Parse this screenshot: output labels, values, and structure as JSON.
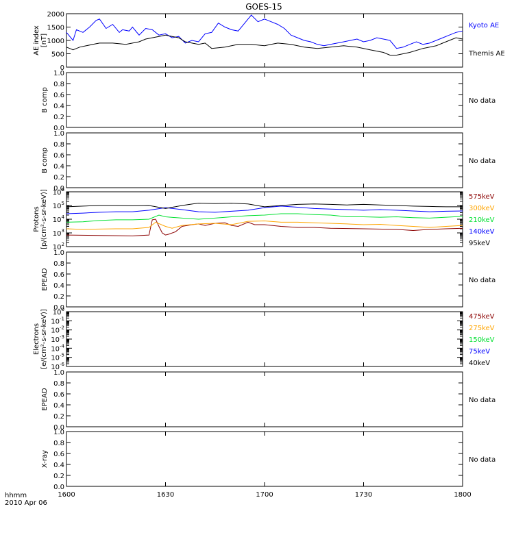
{
  "title": "GOES-15",
  "x_axis": {
    "unit_label": "hhmm",
    "date_label": "2010 Apr 06",
    "ticks": [
      "1600",
      "1630",
      "1700",
      "1730",
      "1800"
    ],
    "range_minutes": [
      0,
      120
    ]
  },
  "no_data_text": "No data",
  "chart_data": [
    {
      "id": "ae",
      "type": "line",
      "ylabel": [
        "AE index",
        "[nT]"
      ],
      "ylim": [
        0,
        2000
      ],
      "yticks": [
        "0",
        "500",
        "1000",
        "1500",
        "2000"
      ],
      "x_unit": "minutes after 1600 UT",
      "series": [
        {
          "name": "Kyoto AE",
          "color": "#0000ff",
          "x": [
            0,
            2,
            3,
            5,
            7,
            9,
            10,
            12,
            14,
            16,
            17,
            19,
            20,
            22,
            24,
            26,
            28,
            30,
            32,
            34,
            36,
            38,
            40,
            42,
            44,
            46,
            48,
            50,
            52,
            54,
            56,
            58,
            60,
            62,
            64,
            66,
            68,
            70,
            72,
            74,
            76,
            78,
            80,
            82,
            84,
            86,
            88,
            90,
            92,
            94,
            96,
            98,
            100,
            102,
            104,
            106,
            108,
            110,
            112,
            114,
            116,
            118,
            120
          ],
          "values": [
            1300,
            1000,
            1400,
            1300,
            1500,
            1750,
            1800,
            1450,
            1600,
            1300,
            1400,
            1350,
            1500,
            1200,
            1450,
            1400,
            1200,
            1250,
            1100,
            1150,
            900,
            1000,
            950,
            1250,
            1300,
            1650,
            1500,
            1400,
            1350,
            1650,
            1950,
            1700,
            1800,
            1700,
            1600,
            1450,
            1200,
            1100,
            1000,
            950,
            850,
            800,
            850,
            900,
            950,
            1000,
            1050,
            950,
            1000,
            1100,
            1050,
            1000,
            700,
            750,
            850,
            950,
            850,
            900,
            1000,
            1100,
            1200,
            1300,
            1350
          ]
        },
        {
          "name": "Themis AE",
          "color": "#000000",
          "x": [
            0,
            2,
            4,
            6,
            8,
            10,
            14,
            18,
            22,
            24,
            26,
            28,
            30,
            32,
            34,
            36,
            40,
            42,
            44,
            48,
            52,
            56,
            60,
            62,
            64,
            68,
            72,
            76,
            80,
            84,
            88,
            92,
            96,
            98,
            100,
            104,
            108,
            112,
            114,
            116,
            118,
            120
          ],
          "values": [
            750,
            650,
            750,
            800,
            850,
            900,
            900,
            850,
            950,
            1050,
            1100,
            1150,
            1200,
            1150,
            1100,
            950,
            850,
            900,
            700,
            750,
            850,
            850,
            800,
            850,
            900,
            850,
            750,
            700,
            750,
            800,
            750,
            650,
            550,
            450,
            450,
            550,
            700,
            800,
            900,
            1000,
            1100,
            1050
          ]
        }
      ]
    },
    {
      "id": "b1",
      "type": "line",
      "ylabel": [
        "B comp"
      ],
      "ylim": [
        0,
        1
      ],
      "yticks": [
        "0.0",
        "0.2",
        "0.4",
        "0.6",
        "0.8",
        "1.0"
      ],
      "no_data": true
    },
    {
      "id": "b2",
      "type": "line",
      "ylabel": [
        "B comp"
      ],
      "ylim": [
        0,
        1
      ],
      "yticks": [
        "0.0",
        "0.2",
        "0.4",
        "0.6",
        "0.8",
        "1.0"
      ],
      "no_data": true
    },
    {
      "id": "protons",
      "type": "line",
      "scale": "log",
      "ylabel": [
        "Protons",
        "[p/(cm²-s-sr-keV)]"
      ],
      "ylim_exp": [
        2,
        6
      ],
      "ytick_exps": [
        2,
        3,
        4,
        5,
        6
      ],
      "x_unit": "minutes after 1600 UT",
      "series": [
        {
          "name": "575keV",
          "color": "#8b0000",
          "x": [
            0,
            10,
            20,
            25,
            26,
            27,
            28,
            29,
            30,
            31,
            33,
            35,
            38,
            40,
            42,
            45,
            48,
            50,
            52,
            55,
            57,
            60,
            65,
            70,
            75,
            80,
            90,
            100,
            105,
            110,
            115,
            120
          ],
          "values": [
            700,
            650,
            600,
            700,
            9000,
            10000,
            3000,
            1000,
            700,
            800,
            1200,
            3000,
            4000,
            4500,
            3500,
            5000,
            5500,
            3500,
            3000,
            6000,
            4000,
            4000,
            3000,
            2500,
            2500,
            2200,
            2000,
            1800,
            1500,
            1800,
            2000,
            2200
          ]
        },
        {
          "name": "300keV",
          "color": "#ffa500",
          "x": [
            0,
            5,
            10,
            15,
            20,
            25,
            27,
            30,
            32,
            35,
            40,
            45,
            50,
            55,
            60,
            65,
            70,
            75,
            80,
            85,
            90,
            95,
            100,
            105,
            110,
            115,
            120
          ],
          "values": [
            2000,
            1800,
            1900,
            2000,
            2000,
            2500,
            6000,
            3000,
            2200,
            3500,
            4500,
            5000,
            4000,
            7000,
            7500,
            6000,
            6000,
            5500,
            5000,
            4500,
            4000,
            4200,
            3500,
            3000,
            2500,
            3000,
            3500
          ]
        },
        {
          "name": "210keV",
          "color": "#00e030",
          "x": [
            0,
            5,
            10,
            15,
            20,
            25,
            28,
            30,
            35,
            40,
            45,
            50,
            55,
            60,
            65,
            70,
            75,
            80,
            85,
            90,
            95,
            100,
            105,
            110,
            115,
            120
          ],
          "values": [
            6000,
            6500,
            8000,
            9000,
            9000,
            10000,
            20000,
            15000,
            12000,
            10000,
            12000,
            15000,
            18000,
            20000,
            25000,
            25000,
            22000,
            20000,
            15000,
            15000,
            14000,
            15000,
            13000,
            12000,
            14000,
            16000
          ]
        },
        {
          "name": "140keV",
          "color": "#0000ff",
          "x": [
            0,
            5,
            10,
            15,
            20,
            25,
            30,
            35,
            40,
            45,
            50,
            55,
            60,
            65,
            70,
            75,
            80,
            85,
            90,
            95,
            100,
            105,
            110,
            115,
            120
          ],
          "values": [
            25000,
            28000,
            32000,
            35000,
            35000,
            45000,
            70000,
            50000,
            35000,
            32000,
            38000,
            45000,
            70000,
            90000,
            75000,
            60000,
            55000,
            50000,
            45000,
            50000,
            45000,
            40000,
            35000,
            38000,
            40000
          ]
        },
        {
          "name": "95keV",
          "color": "#000000",
          "x": [
            0,
            5,
            10,
            15,
            20,
            25,
            30,
            35,
            40,
            45,
            50,
            55,
            60,
            65,
            70,
            75,
            80,
            85,
            90,
            95,
            100,
            105,
            110,
            115,
            120
          ],
          "values": [
            80000,
            90000,
            100000,
            100000,
            95000,
            100000,
            60000,
            100000,
            150000,
            140000,
            150000,
            130000,
            80000,
            100000,
            120000,
            130000,
            120000,
            110000,
            120000,
            110000,
            100000,
            90000,
            85000,
            80000,
            80000
          ]
        }
      ]
    },
    {
      "id": "epead1",
      "type": "line",
      "ylabel": [
        "EPEAD"
      ],
      "ylim": [
        0,
        1
      ],
      "yticks": [
        "0.0",
        "0.2",
        "0.4",
        "0.6",
        "0.8",
        "1.0"
      ],
      "no_data": true
    },
    {
      "id": "electrons",
      "type": "line",
      "scale": "log",
      "ylabel": [
        "Electrons",
        "[e/(cm²-s-sr-keV)]"
      ],
      "ylim_exp": [
        -6,
        0
      ],
      "ytick_exps": [
        -6,
        -5,
        -4,
        -3,
        -2,
        -1,
        0
      ],
      "series_labels": [
        {
          "name": "475keV",
          "color": "#8b0000"
        },
        {
          "name": "275keV",
          "color": "#ffa500"
        },
        {
          "name": "150keV",
          "color": "#00e030"
        },
        {
          "name": "75keV",
          "color": "#0000ff"
        },
        {
          "name": "40keV",
          "color": "#000000"
        }
      ]
    },
    {
      "id": "epead2",
      "type": "line",
      "ylabel": [
        "EPEAD"
      ],
      "ylim": [
        0,
        1
      ],
      "yticks": [
        "0.0",
        "0.2",
        "0.4",
        "0.6",
        "0.8",
        "1.0"
      ],
      "no_data": true
    },
    {
      "id": "xray",
      "type": "line",
      "ylabel": [
        "X-ray"
      ],
      "ylim": [
        0,
        1
      ],
      "yticks": [
        "0.0",
        "0.2",
        "0.4",
        "0.6",
        "0.8",
        "1.0"
      ],
      "no_data": true
    }
  ]
}
